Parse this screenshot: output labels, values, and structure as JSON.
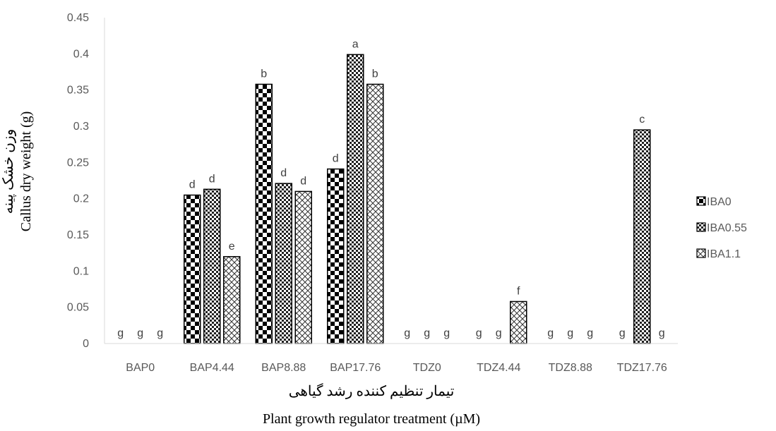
{
  "chart_data": {
    "type": "bar",
    "categories": [
      "BAP0",
      "BAP4.44",
      "BAP8.88",
      "BAP17.76",
      "TDZ0",
      "TDZ4.44",
      "TDZ8.88",
      "TDZ17.76"
    ],
    "series": [
      {
        "name": "IBA0",
        "values": [
          0,
          0.205,
          0.358,
          0.241,
          0,
          0,
          0,
          0
        ],
        "letters": [
          "g",
          "d",
          "b",
          "d",
          "g",
          "g",
          "g",
          "g"
        ],
        "pattern": "checker"
      },
      {
        "name": "IBA0.55",
        "values": [
          0,
          0.213,
          0.221,
          0.399,
          0,
          0,
          0,
          0.295
        ],
        "letters": [
          "g",
          "d",
          "d",
          "a",
          "g",
          "g",
          "g",
          "c"
        ],
        "pattern": "smallchecker"
      },
      {
        "name": "IBA1.1",
        "values": [
          0,
          0.12,
          0.21,
          0.358,
          0,
          0.058,
          0,
          0
        ],
        "letters": [
          "g",
          "e",
          "d",
          "b",
          "g",
          "f",
          "g",
          "g"
        ],
        "pattern": "crosshatch"
      }
    ],
    "ylim": [
      0,
      0.45
    ],
    "yticks": [
      "0",
      "0.05",
      "0.1",
      "0.15",
      "0.2",
      "0.25",
      "0.3",
      "0.35",
      "0.4",
      "0.45"
    ],
    "ylabel_fa": "وزن خشک پینه",
    "ylabel": "Callus dry weight (g)",
    "xlabel_fa": "تیمار تنظیم کننده رشد گیاهی",
    "xlabel": "Plant growth regulator  treatment (µM)",
    "grid": false,
    "legend_position": "right"
  }
}
